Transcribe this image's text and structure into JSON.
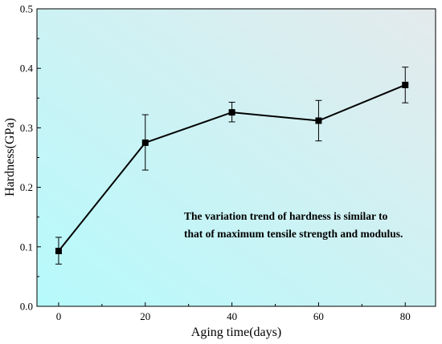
{
  "chart_data": {
    "type": "line",
    "xlabel": "Aging time(days)",
    "ylabel": "Hardness(GPa)",
    "xlim": [
      -5,
      87
    ],
    "ylim": [
      0.0,
      0.5
    ],
    "xticks": [
      0,
      20,
      40,
      60,
      80
    ],
    "xtick_labels": [
      "0",
      "20",
      "40",
      "60",
      "80"
    ],
    "yticks": [
      0.0,
      0.1,
      0.2,
      0.3,
      0.4,
      0.5
    ],
    "ytick_labels": [
      "0.0",
      "0.1",
      "0.2",
      "0.3",
      "0.4",
      "0.5"
    ],
    "grid": false,
    "legend": false,
    "series": [
      {
        "x": [
          0,
          20,
          40,
          60,
          80
        ],
        "y": [
          0.093,
          0.275,
          0.326,
          0.312,
          0.372
        ],
        "err_low": [
          0.071,
          0.229,
          0.31,
          0.278,
          0.342
        ],
        "err_high": [
          0.116,
          0.322,
          0.343,
          0.346,
          0.402
        ],
        "color": "#000000",
        "marker": "square"
      }
    ],
    "annotation": {
      "lines": [
        "The variation trend of hardness is similar to",
        "that of maximum tensile strength and modulus."
      ]
    },
    "background_gradient": [
      "#b6fafc",
      "#e4eaec"
    ]
  }
}
